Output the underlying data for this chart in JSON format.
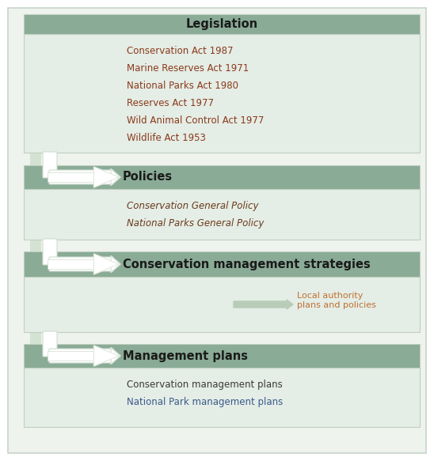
{
  "bg_color": "#ffffff",
  "outer_bg": "#eef3ee",
  "outer_border": "#c8d4c8",
  "header_color": "#8aab96",
  "section_bg": "#e4ede6",
  "section_border": "#c0cfc0",
  "connector_color": "#d4e2d4",
  "arrow_fill": "#ffffff",
  "arrow_edge": "#d0dcd0",
  "small_arrow_color": "#b8ccb8",
  "title_color": "#1a1a1a",
  "local_auth_color": "#c07030",
  "sections": [
    {
      "label": "Legislation",
      "items": [
        {
          "text": "Conservation Act 1987",
          "color": "#8b3a1a",
          "style": "normal"
        },
        {
          "text": "Marine Reserves Act 1971",
          "color": "#8b3a1a",
          "style": "normal"
        },
        {
          "text": "National Parks Act 1980",
          "color": "#8b3a1a",
          "style": "normal"
        },
        {
          "text": "Reserves Act 1977",
          "color": "#8b3a1a",
          "style": "normal"
        },
        {
          "text": "Wild Animal Control Act 1977",
          "color": "#8b3a1a",
          "style": "normal"
        },
        {
          "text": "Wildlife Act 1953",
          "color": "#8b3a1a",
          "style": "normal"
        }
      ],
      "has_arrow": false,
      "side_arrow": false
    },
    {
      "label": "Policies",
      "items": [
        {
          "text": "Conservation General Policy",
          "color": "#6b3a1a",
          "style": "italic"
        },
        {
          "text": "National Parks General Policy",
          "color": "#6b3a1a",
          "style": "italic"
        }
      ],
      "has_arrow": true,
      "side_arrow": false
    },
    {
      "label": "Conservation management strategies",
      "items": [],
      "has_arrow": true,
      "side_arrow": true
    },
    {
      "label": "Management plans",
      "items": [
        {
          "text": "Conservation management plans",
          "color": "#3a3a3a",
          "style": "normal"
        },
        {
          "text": "National Park management plans",
          "color": "#3a5a8c",
          "style": "normal"
        }
      ],
      "has_arrow": true,
      "side_arrow": false
    }
  ]
}
